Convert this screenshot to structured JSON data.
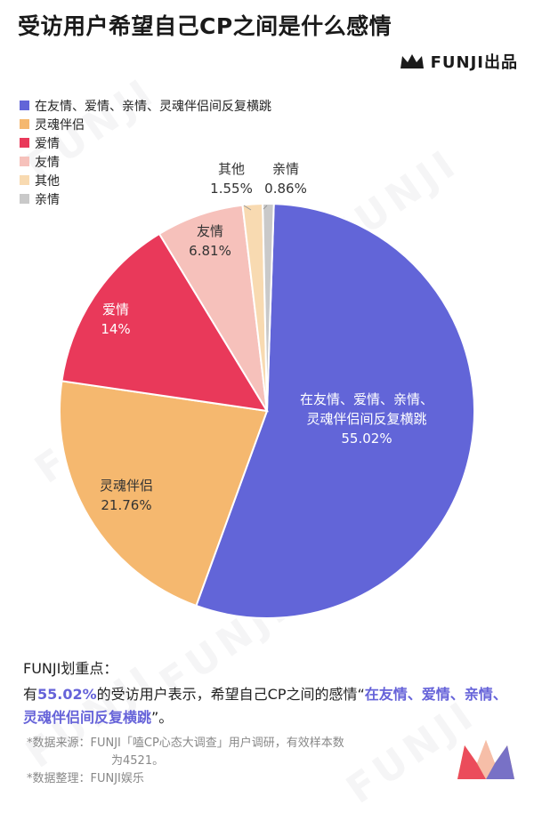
{
  "title": "受访用户希望自己CP之间是什么感情",
  "brand": {
    "name": "FUNJI出品",
    "icon": "crown-logo-icon"
  },
  "chart_data": {
    "type": "pie",
    "labels": [
      "在友情、爱情、亲情、灵魂伴侣间反复横跳",
      "灵魂伴侣",
      "爱情",
      "友情",
      "其他",
      "亲情"
    ],
    "values": [
      55.02,
      21.76,
      14,
      6.81,
      1.55,
      0.86
    ],
    "value_labels": [
      "55.02%",
      "21.76%",
      "14%",
      "6.81%",
      "1.55%",
      "0.86%"
    ],
    "slice_text": [
      [
        "在友情、爱情、亲情、",
        "灵魂伴侣间反复横跳"
      ],
      [
        "灵魂伴侣"
      ],
      [
        "爱情"
      ],
      [
        "友情"
      ],
      [
        "其他"
      ],
      [
        "亲情"
      ]
    ],
    "colors": [
      "#6265d8",
      "#f5b86f",
      "#e9395a",
      "#f6c1bb",
      "#f8dab1",
      "#c9c9c9"
    ],
    "legend_position": "top-left"
  },
  "notes": {
    "heading": "FUNJI划重点：",
    "pre": "有",
    "pct": "55.02%",
    "mid": "的受访用户表示，希望自己CP之间的感情“",
    "quote": "在友情、爱情、亲情、灵魂伴侣间反复横跳",
    "post": "”。"
  },
  "source": {
    "line1": "*数据来源：FUNJI「嗑CP心态大调查」用户调研，有效样本数",
    "line2": "为4521。",
    "line3": "*数据整理：FUNJI娱乐"
  },
  "watermark_text": "FUNJI"
}
